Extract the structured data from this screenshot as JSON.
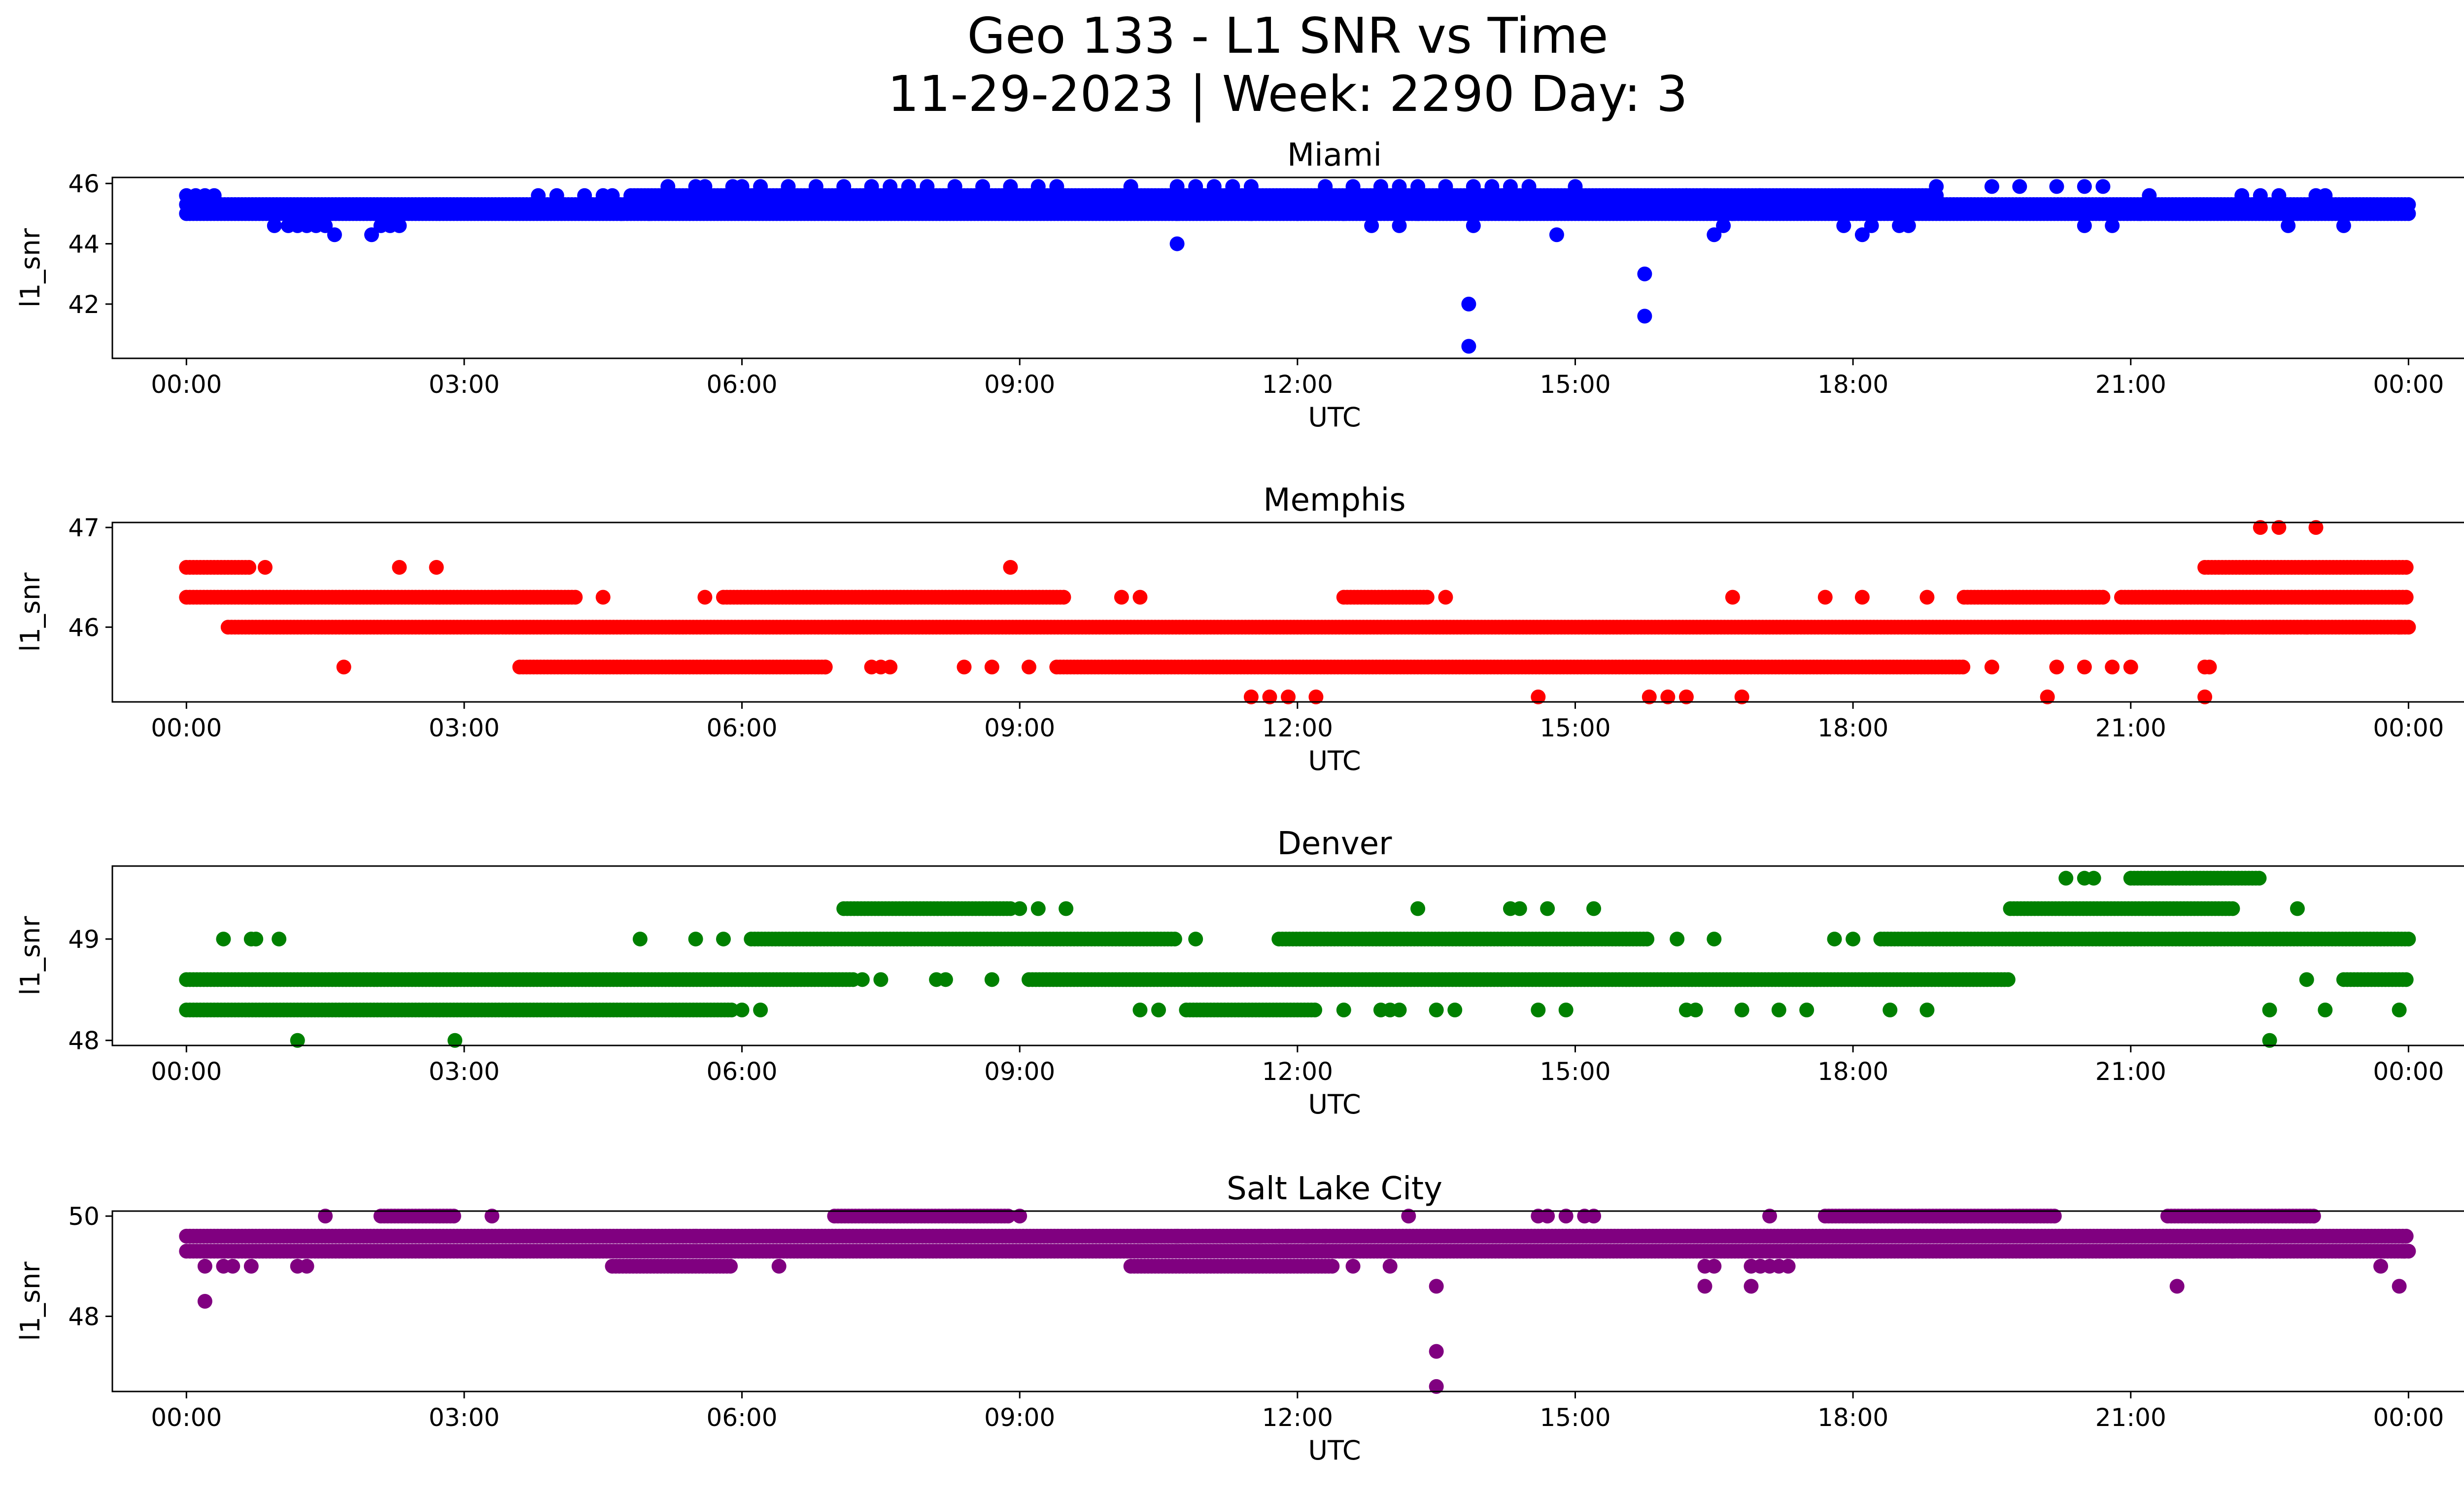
{
  "figure": {
    "title_line1": "Geo 133 - L1 SNR vs Time",
    "title_line2": "11-29-2023 | Week: 2290 Day: 3"
  },
  "chart_data": [
    {
      "type": "scatter",
      "title": "Miami",
      "xlabel": "UTC",
      "ylabel": "l1_snr",
      "color": "#0000ff",
      "x_unit": "hours UTC",
      "xlim": [
        -0.8,
        25.6
      ],
      "ylim": [
        40.2,
        46.2
      ],
      "x_ticks": [
        0,
        3,
        6,
        9,
        12,
        15,
        18,
        21,
        24
      ],
      "x_tick_labels": [
        "00:00",
        "03:00",
        "06:00",
        "09:00",
        "12:00",
        "15:00",
        "18:00",
        "21:00",
        "00:00"
      ],
      "y_ticks": [
        42,
        44,
        46
      ],
      "y_tick_labels": [
        "42",
        "44",
        "46"
      ],
      "bands": [
        {
          "y": 45.0,
          "start": 0.0,
          "end": 24.0
        },
        {
          "y": 45.3,
          "start": 0.0,
          "end": 24.0
        },
        {
          "y": 45.6,
          "start": 4.8,
          "end": 18.9
        }
      ],
      "points": [
        [
          0.0,
          45.6
        ],
        [
          0.1,
          45.6
        ],
        [
          0.2,
          45.6
        ],
        [
          0.3,
          45.6
        ],
        [
          0.95,
          44.6
        ],
        [
          1.1,
          44.6
        ],
        [
          1.2,
          44.6
        ],
        [
          1.3,
          44.6
        ],
        [
          1.4,
          44.6
        ],
        [
          1.5,
          44.6
        ],
        [
          1.6,
          44.3
        ],
        [
          2.0,
          44.3
        ],
        [
          2.1,
          44.6
        ],
        [
          2.2,
          44.6
        ],
        [
          2.3,
          44.6
        ],
        [
          3.8,
          45.6
        ],
        [
          4.0,
          45.6
        ],
        [
          4.3,
          45.6
        ],
        [
          4.5,
          45.6
        ],
        [
          4.6,
          45.6
        ],
        [
          4.7,
          45.0
        ],
        [
          5.0,
          45.0
        ],
        [
          5.2,
          45.9
        ],
        [
          5.5,
          45.9
        ],
        [
          5.6,
          45.9
        ],
        [
          5.9,
          45.9
        ],
        [
          6.0,
          45.9
        ],
        [
          6.2,
          45.9
        ],
        [
          6.5,
          45.9
        ],
        [
          6.8,
          45.9
        ],
        [
          7.1,
          45.9
        ],
        [
          7.4,
          45.9
        ],
        [
          7.6,
          45.9
        ],
        [
          7.8,
          45.9
        ],
        [
          8.0,
          45.9
        ],
        [
          8.3,
          45.9
        ],
        [
          8.6,
          45.9
        ],
        [
          8.9,
          45.9
        ],
        [
          9.2,
          45.9
        ],
        [
          9.4,
          45.9
        ],
        [
          10.2,
          45.9
        ],
        [
          10.7,
          45.9
        ],
        [
          10.9,
          45.9
        ],
        [
          11.1,
          45.9
        ],
        [
          11.3,
          45.9
        ],
        [
          11.5,
          45.9
        ],
        [
          12.3,
          45.9
        ],
        [
          12.6,
          45.9
        ],
        [
          12.9,
          45.9
        ],
        [
          13.1,
          45.9
        ],
        [
          13.3,
          45.9
        ],
        [
          13.6,
          45.9
        ],
        [
          13.9,
          45.9
        ],
        [
          14.1,
          45.9
        ],
        [
          14.3,
          45.9
        ],
        [
          14.5,
          45.9
        ],
        [
          15.0,
          45.9
        ],
        [
          16.2,
          45.6
        ],
        [
          16.4,
          45.6
        ],
        [
          17.0,
          45.6
        ],
        [
          18.9,
          45.9
        ],
        [
          19.5,
          45.9
        ],
        [
          19.8,
          45.9
        ],
        [
          20.2,
          45.9
        ],
        [
          20.5,
          45.9
        ],
        [
          20.7,
          45.9
        ],
        [
          21.2,
          45.6
        ],
        [
          22.2,
          45.6
        ],
        [
          22.4,
          45.6
        ],
        [
          22.6,
          45.6
        ],
        [
          23.0,
          45.6
        ],
        [
          23.1,
          45.6
        ],
        [
          10.7,
          44.0
        ],
        [
          10.7,
          45.0
        ],
        [
          11.5,
          45.0
        ],
        [
          12.0,
          45.0
        ],
        [
          12.5,
          45.0
        ],
        [
          12.8,
          44.6
        ],
        [
          13.1,
          44.6
        ],
        [
          13.3,
          45.0
        ],
        [
          13.9,
          44.6
        ],
        [
          14.4,
          45.0
        ],
        [
          14.8,
          44.3
        ],
        [
          16.5,
          44.3
        ],
        [
          16.6,
          44.6
        ],
        [
          16.7,
          45.0
        ],
        [
          17.9,
          44.6
        ],
        [
          18.1,
          44.3
        ],
        [
          18.2,
          44.6
        ],
        [
          18.5,
          44.6
        ],
        [
          18.6,
          44.6
        ],
        [
          20.5,
          44.6
        ],
        [
          20.8,
          44.6
        ],
        [
          21.1,
          45.0
        ],
        [
          22.7,
          44.6
        ],
        [
          23.3,
          44.6
        ],
        [
          13.85,
          42.0
        ],
        [
          13.85,
          40.6
        ],
        [
          15.75,
          43.0
        ],
        [
          15.75,
          41.6
        ]
      ]
    },
    {
      "type": "scatter",
      "title": "Memphis",
      "xlabel": "UTC",
      "ylabel": "l1_snr",
      "color": "#ff0000",
      "x_unit": "hours UTC",
      "xlim": [
        -0.8,
        25.6
      ],
      "ylim": [
        45.25,
        47.05
      ],
      "x_ticks": [
        0,
        3,
        6,
        9,
        12,
        15,
        18,
        21,
        24
      ],
      "x_tick_labels": [
        "00:00",
        "03:00",
        "06:00",
        "09:00",
        "12:00",
        "15:00",
        "18:00",
        "21:00",
        "00:00"
      ],
      "y_ticks": [
        46,
        47
      ],
      "y_tick_labels": [
        "46",
        "47"
      ],
      "bands": [
        {
          "y": 46.0,
          "start": 0.45,
          "end": 24.0
        },
        {
          "y": 46.3,
          "start": 0.0,
          "end": 4.2
        },
        {
          "y": 46.6,
          "start": 0.0,
          "end": 0.7
        },
        {
          "y": 46.3,
          "start": 5.8,
          "end": 9.5
        },
        {
          "y": 45.6,
          "start": 3.6,
          "end": 6.9
        },
        {
          "y": 45.6,
          "start": 9.4,
          "end": 19.2
        },
        {
          "y": 46.3,
          "start": 12.5,
          "end": 13.4
        },
        {
          "y": 46.3,
          "start": 19.2,
          "end": 20.7
        },
        {
          "y": 46.3,
          "start": 20.9,
          "end": 24.0
        },
        {
          "y": 46.6,
          "start": 21.8,
          "end": 24.0
        }
      ],
      "points": [
        [
          0.85,
          46.6
        ],
        [
          2.3,
          46.6
        ],
        [
          2.7,
          46.6
        ],
        [
          8.9,
          46.6
        ],
        [
          1.7,
          45.6
        ],
        [
          4.5,
          46.3
        ],
        [
          5.6,
          46.3
        ],
        [
          10.1,
          46.3
        ],
        [
          10.3,
          46.3
        ],
        [
          13.6,
          46.3
        ],
        [
          16.7,
          46.3
        ],
        [
          17.7,
          46.3
        ],
        [
          18.1,
          46.3
        ],
        [
          18.8,
          46.3
        ],
        [
          6.9,
          45.6
        ],
        [
          7.4,
          45.6
        ],
        [
          7.5,
          45.6
        ],
        [
          7.6,
          45.6
        ],
        [
          8.4,
          45.6
        ],
        [
          8.7,
          45.6
        ],
        [
          9.1,
          45.6
        ],
        [
          19.5,
          45.6
        ],
        [
          20.2,
          45.6
        ],
        [
          20.5,
          45.6
        ],
        [
          20.8,
          45.6
        ],
        [
          21.0,
          45.6
        ],
        [
          21.8,
          45.6
        ],
        [
          21.85,
          45.6
        ],
        [
          11.5,
          45.3
        ],
        [
          11.7,
          45.3
        ],
        [
          11.9,
          45.3
        ],
        [
          12.2,
          45.3
        ],
        [
          14.6,
          45.3
        ],
        [
          15.8,
          45.3
        ],
        [
          16.0,
          45.3
        ],
        [
          16.2,
          45.3
        ],
        [
          16.8,
          45.3
        ],
        [
          20.1,
          45.3
        ],
        [
          21.8,
          45.3
        ],
        [
          22.4,
          47.0
        ],
        [
          22.6,
          47.0
        ],
        [
          23.0,
          47.0
        ],
        [
          22.0,
          46.0
        ],
        [
          22.9,
          46.0
        ],
        [
          23.9,
          46.0
        ]
      ]
    },
    {
      "type": "scatter",
      "title": "Denver",
      "xlabel": "UTC",
      "ylabel": "l1_snr",
      "color": "#008000",
      "x_unit": "hours UTC",
      "xlim": [
        -0.8,
        25.6
      ],
      "ylim": [
        47.95,
        49.72
      ],
      "x_ticks": [
        0,
        3,
        6,
        9,
        12,
        15,
        18,
        21,
        24
      ],
      "x_tick_labels": [
        "00:00",
        "03:00",
        "06:00",
        "09:00",
        "12:00",
        "15:00",
        "18:00",
        "21:00",
        "00:00"
      ],
      "y_ticks": [
        48,
        49
      ],
      "y_tick_labels": [
        "48",
        "49"
      ],
      "bands": [
        {
          "y": 48.6,
          "start": 0.0,
          "end": 7.2
        },
        {
          "y": 48.3,
          "start": 0.0,
          "end": 5.9
        },
        {
          "y": 49.0,
          "start": 6.1,
          "end": 10.7
        },
        {
          "y": 49.3,
          "start": 7.1,
          "end": 8.9
        },
        {
          "y": 48.6,
          "start": 9.1,
          "end": 19.7
        },
        {
          "y": 49.0,
          "start": 11.8,
          "end": 15.8
        },
        {
          "y": 48.3,
          "start": 10.8,
          "end": 12.2
        },
        {
          "y": 49.0,
          "start": 18.3,
          "end": 24.0
        },
        {
          "y": 49.3,
          "start": 19.7,
          "end": 22.1
        },
        {
          "y": 49.6,
          "start": 21.0,
          "end": 22.4
        },
        {
          "y": 48.6,
          "start": 23.3,
          "end": 24.0
        }
      ],
      "points": [
        [
          0.4,
          49.0
        ],
        [
          0.7,
          49.0
        ],
        [
          0.75,
          49.0
        ],
        [
          1.0,
          49.0
        ],
        [
          4.9,
          49.0
        ],
        [
          5.5,
          49.0
        ],
        [
          5.8,
          49.0
        ],
        [
          1.2,
          48.0
        ],
        [
          2.9,
          48.0
        ],
        [
          6.0,
          48.3
        ],
        [
          6.2,
          48.3
        ],
        [
          7.3,
          48.6
        ],
        [
          7.5,
          48.6
        ],
        [
          8.1,
          48.6
        ],
        [
          8.2,
          48.6
        ],
        [
          8.7,
          48.6
        ],
        [
          9.5,
          49.3
        ],
        [
          9.0,
          49.3
        ],
        [
          9.2,
          49.3
        ],
        [
          10.3,
          48.3
        ],
        [
          10.5,
          48.3
        ],
        [
          10.9,
          49.0
        ],
        [
          12.5,
          48.3
        ],
        [
          12.9,
          48.3
        ],
        [
          13.0,
          48.3
        ],
        [
          13.1,
          48.3
        ],
        [
          13.5,
          48.3
        ],
        [
          13.7,
          48.3
        ],
        [
          13.3,
          49.3
        ],
        [
          14.3,
          49.3
        ],
        [
          14.4,
          49.3
        ],
        [
          14.7,
          49.3
        ],
        [
          15.2,
          49.3
        ],
        [
          14.6,
          48.3
        ],
        [
          14.9,
          48.3
        ],
        [
          16.2,
          48.3
        ],
        [
          16.3,
          48.3
        ],
        [
          16.8,
          48.3
        ],
        [
          17.2,
          48.3
        ],
        [
          17.5,
          48.3
        ],
        [
          18.4,
          48.3
        ],
        [
          18.8,
          48.3
        ],
        [
          16.1,
          49.0
        ],
        [
          16.5,
          49.0
        ],
        [
          17.8,
          49.0
        ],
        [
          18.0,
          49.0
        ],
        [
          20.3,
          49.6
        ],
        [
          20.5,
          49.6
        ],
        [
          20.6,
          49.6
        ],
        [
          22.5,
          48.3
        ],
        [
          22.5,
          48.0
        ],
        [
          22.9,
          48.6
        ],
        [
          23.1,
          48.3
        ],
        [
          23.9,
          48.3
        ],
        [
          22.8,
          49.3
        ]
      ]
    },
    {
      "type": "scatter",
      "title": "Salt Lake City",
      "xlabel": "UTC",
      "ylabel": "l1_snr",
      "color": "#800080",
      "x_unit": "hours UTC",
      "xlim": [
        -0.8,
        25.6
      ],
      "ylim": [
        46.5,
        50.1
      ],
      "x_ticks": [
        0,
        3,
        6,
        9,
        12,
        15,
        18,
        21,
        24
      ],
      "x_tick_labels": [
        "00:00",
        "03:00",
        "06:00",
        "09:00",
        "12:00",
        "15:00",
        "18:00",
        "21:00",
        "00:00"
      ],
      "y_ticks": [
        48,
        50
      ],
      "y_tick_labels": [
        "48",
        "50"
      ],
      "bands": [
        {
          "y": 49.3,
          "start": 0.0,
          "end": 24.0
        },
        {
          "y": 49.6,
          "start": 0.0,
          "end": 10.3
        },
        {
          "y": 49.6,
          "start": 11.9,
          "end": 24.0
        },
        {
          "y": 49.0,
          "start": 4.6,
          "end": 5.9
        },
        {
          "y": 49.0,
          "start": 10.2,
          "end": 12.4
        },
        {
          "y": 50.0,
          "start": 2.1,
          "end": 2.9
        },
        {
          "y": 50.0,
          "start": 7.0,
          "end": 8.9
        },
        {
          "y": 50.0,
          "start": 17.7,
          "end": 20.2
        },
        {
          "y": 50.0,
          "start": 21.4,
          "end": 23.0
        },
        {
          "y": 49.6,
          "start": 10.3,
          "end": 11.9
        }
      ],
      "points": [
        [
          0.2,
          48.3
        ],
        [
          0.2,
          49.0
        ],
        [
          0.4,
          49.0
        ],
        [
          0.5,
          49.0
        ],
        [
          0.7,
          49.0
        ],
        [
          1.2,
          49.0
        ],
        [
          1.3,
          49.0
        ],
        [
          1.5,
          50.0
        ],
        [
          3.3,
          50.0
        ],
        [
          4.9,
          49.6
        ],
        [
          5.5,
          49.6
        ],
        [
          6.4,
          49.0
        ],
        [
          9.0,
          50.0
        ],
        [
          10.7,
          49.6
        ],
        [
          11.6,
          49.6
        ],
        [
          11.8,
          49.6
        ],
        [
          12.1,
          49.6
        ],
        [
          12.3,
          49.6
        ],
        [
          13.2,
          50.0
        ],
        [
          13.5,
          48.6
        ],
        [
          13.5,
          47.3
        ],
        [
          13.5,
          46.6
        ],
        [
          13.0,
          49.0
        ],
        [
          12.6,
          49.0
        ],
        [
          14.6,
          50.0
        ],
        [
          14.7,
          50.0
        ],
        [
          14.9,
          50.0
        ],
        [
          15.1,
          50.0
        ],
        [
          15.2,
          50.0
        ],
        [
          16.4,
          48.6
        ],
        [
          16.4,
          49.0
        ],
        [
          16.5,
          49.0
        ],
        [
          16.9,
          48.6
        ],
        [
          16.9,
          49.0
        ],
        [
          17.0,
          49.0
        ],
        [
          17.1,
          49.0
        ],
        [
          17.2,
          49.0
        ],
        [
          17.3,
          49.0
        ],
        [
          17.4,
          49.3
        ],
        [
          17.1,
          50.0
        ],
        [
          21.5,
          48.6
        ],
        [
          22.1,
          49.3
        ],
        [
          22.5,
          49.3
        ],
        [
          23.7,
          49.0
        ],
        [
          23.9,
          48.6
        ],
        [
          23.95,
          49.3
        ]
      ]
    }
  ]
}
